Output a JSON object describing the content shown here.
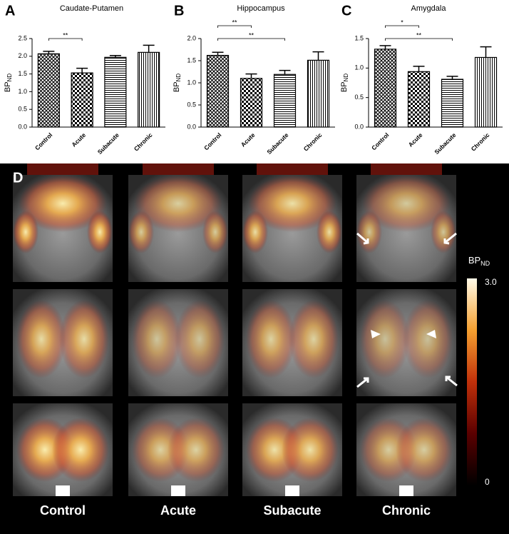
{
  "chart_data": [
    {
      "type": "bar",
      "panel_label": "A",
      "title": "Caudate-Putamen",
      "y_label": "BP",
      "y_label_sub": "ND",
      "categories": [
        "Control",
        "Acute",
        "Subacute",
        "Chronic"
      ],
      "values": [
        2.07,
        1.53,
        1.97,
        2.11
      ],
      "errors": [
        0.07,
        0.13,
        0.05,
        0.2
      ],
      "patterns": [
        "crosshatch",
        "checker",
        "horizontal",
        "vertical"
      ],
      "ylim": [
        0,
        2.5
      ],
      "yticks": [
        {
          "value": 0,
          "label": "0.0"
        },
        {
          "value": 0.5,
          "label": "0.5"
        },
        {
          "value": 1,
          "label": "1.0"
        },
        {
          "value": 1.5,
          "label": "1.5"
        },
        {
          "value": 2,
          "label": "2.0"
        },
        {
          "value": 2.5,
          "label": "2.5"
        }
      ],
      "annotations": [
        {
          "text": "**",
          "between": [
            "Control",
            "Acute"
          ]
        }
      ]
    },
    {
      "type": "bar",
      "panel_label": "B",
      "title": "Hippocampus",
      "y_label": "BP",
      "y_label_sub": "ND",
      "categories": [
        "Control",
        "Acute",
        "Subacute",
        "Chronic"
      ],
      "values": [
        1.62,
        1.1,
        1.19,
        1.51
      ],
      "errors": [
        0.07,
        0.1,
        0.09,
        0.19
      ],
      "patterns": [
        "crosshatch",
        "checker",
        "horizontal",
        "vertical"
      ],
      "ylim": [
        0,
        2
      ],
      "yticks": [
        {
          "value": 0,
          "label": "0.0"
        },
        {
          "value": 0.5,
          "label": "0.5"
        },
        {
          "value": 1,
          "label": "1.0"
        },
        {
          "value": 1.5,
          "label": "1.5"
        },
        {
          "value": 2,
          "label": "2.0"
        }
      ],
      "annotations": [
        {
          "text": "**",
          "between": [
            "Control",
            "Acute"
          ]
        },
        {
          "text": "**",
          "between": [
            "Control",
            "Subacute"
          ]
        }
      ]
    },
    {
      "type": "bar",
      "panel_label": "C",
      "title": "Amygdala",
      "y_label": "BP",
      "y_label_sub": "ND",
      "categories": [
        "Control",
        "Acute",
        "Subacute",
        "Chronic"
      ],
      "values": [
        1.32,
        0.94,
        0.81,
        1.18
      ],
      "errors": [
        0.06,
        0.09,
        0.05,
        0.18
      ],
      "patterns": [
        "crosshatch",
        "checker",
        "horizontal",
        "vertical"
      ],
      "ylim": [
        0,
        1.5
      ],
      "yticks": [
        {
          "value": 0,
          "label": "0.0"
        },
        {
          "value": 0.5,
          "label": "0.5"
        },
        {
          "value": 1,
          "label": "1.0"
        },
        {
          "value": 1.5,
          "label": "1.5"
        }
      ],
      "annotations": [
        {
          "text": "*",
          "between": [
            "Control",
            "Acute"
          ]
        },
        {
          "text": "**",
          "between": [
            "Control",
            "Subacute"
          ]
        }
      ]
    }
  ],
  "image_panel": {
    "label": "D",
    "columns": [
      "Control",
      "Acute",
      "Subacute",
      "Chronic"
    ],
    "colorbar": {
      "title": "BP",
      "title_sub": "ND",
      "lim": [
        0,
        3
      ],
      "ticks": [
        {
          "value": 3,
          "label": "3.0"
        },
        0
      ]
    }
  }
}
